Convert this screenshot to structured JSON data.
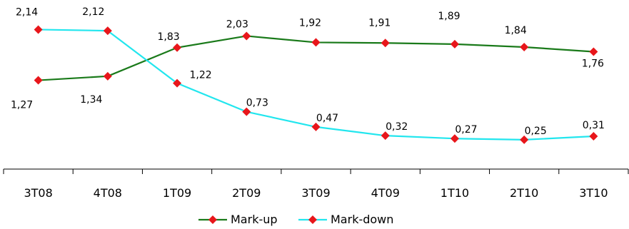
{
  "chart_data": {
    "type": "line",
    "categories": [
      "3T08",
      "4T08",
      "1T09",
      "2T09",
      "3T09",
      "4T09",
      "1T10",
      "2T10",
      "3T10"
    ],
    "series": [
      {
        "name": "Mark-up",
        "color": "#1a7a1a",
        "marker_color": "#e8161b",
        "values": [
          1.27,
          1.34,
          1.83,
          2.03,
          1.92,
          1.91,
          1.89,
          1.84,
          1.76
        ],
        "labels": [
          "1,27",
          "1,34",
          "1,83",
          "2,03",
          "1,92",
          "1,91",
          "1,89",
          "1,84",
          "1,76"
        ]
      },
      {
        "name": "Mark-down",
        "color": "#22e6ee",
        "marker_color": "#e8161b",
        "values": [
          2.14,
          2.12,
          1.22,
          0.73,
          0.47,
          0.32,
          0.27,
          0.25,
          0.31
        ],
        "labels": [
          "2,14",
          "2,12",
          "1,22",
          "0,73",
          "0,47",
          "0,32",
          "0,27",
          "0,25",
          "0,31"
        ]
      }
    ],
    "legend_position": "bottom",
    "grid": false
  }
}
